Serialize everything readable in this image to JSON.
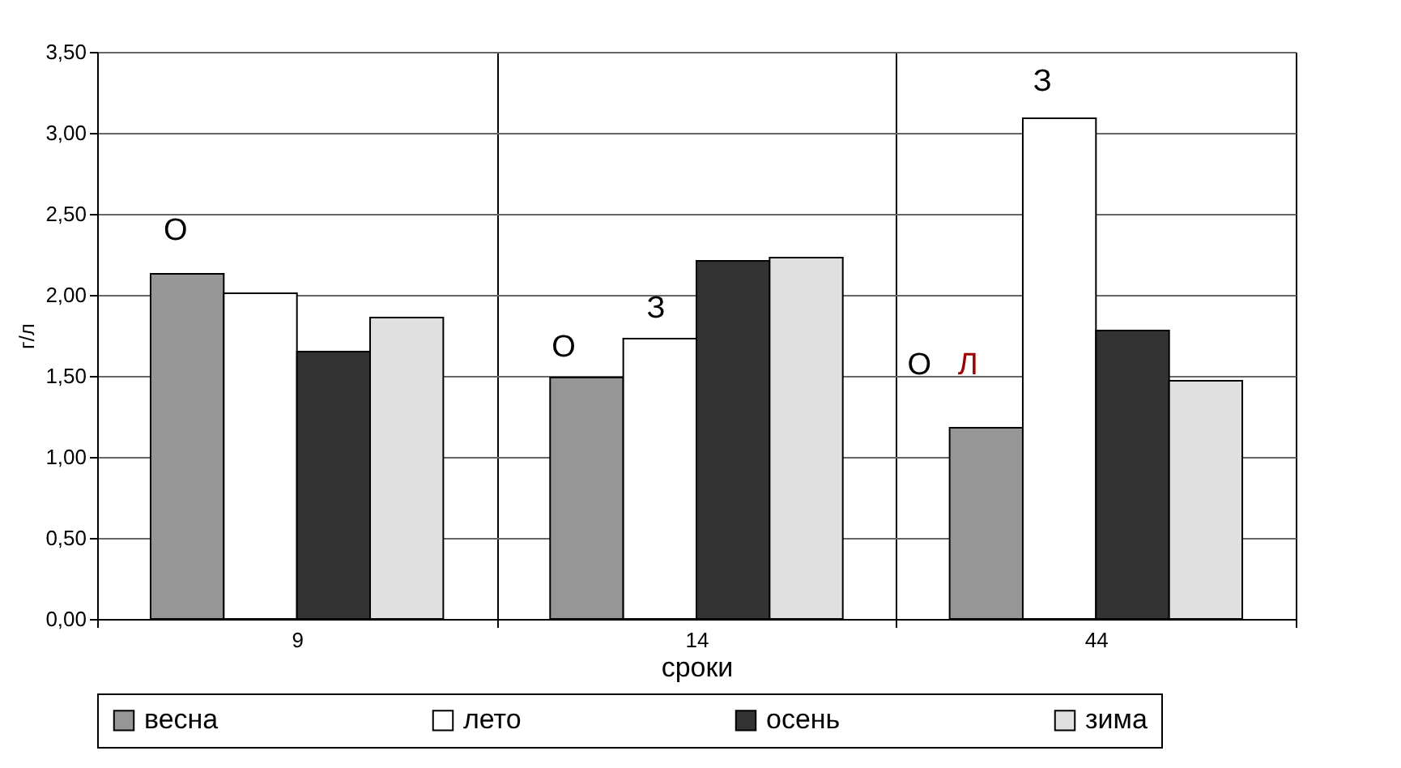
{
  "chart_data": {
    "type": "bar",
    "xlabel": "сроки",
    "ylabel": "г/л",
    "categories": [
      "9",
      "14",
      "44"
    ],
    "series": [
      {
        "name": "весна",
        "color": "#969696",
        "values": [
          2.13,
          1.49,
          1.18
        ]
      },
      {
        "name": "лето",
        "color": "#ffffff",
        "values": [
          2.01,
          1.73,
          3.09
        ]
      },
      {
        "name": "осень",
        "color": "#333333",
        "values": [
          1.65,
          2.21,
          1.78
        ]
      },
      {
        "name": "зима",
        "color": "#e0e0e0",
        "values": [
          1.86,
          2.23,
          1.47
        ]
      }
    ],
    "ylim": [
      0,
      3.5
    ],
    "yticks": [
      {
        "value": 0,
        "label": "0,00"
      },
      {
        "value": 0.5,
        "label": "0,50"
      },
      {
        "value": 1,
        "label": "1,00"
      },
      {
        "value": 1.5,
        "label": "1,50"
      },
      {
        "value": 2,
        "label": "2,00"
      },
      {
        "value": 2.5,
        "label": "2,50"
      },
      {
        "value": 3,
        "label": "3,00"
      },
      {
        "value": 3.5,
        "label": "3,50"
      }
    ],
    "annotations": [
      "О",
      "О",
      "З",
      "З",
      "О",
      "Л"
    ],
    "grid": true,
    "legend": "bottom"
  }
}
